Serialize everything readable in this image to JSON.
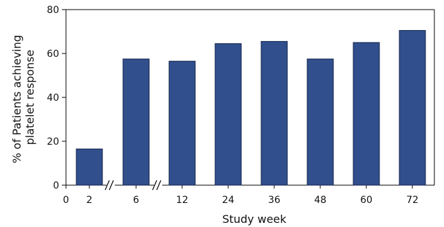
{
  "chart_data": {
    "type": "bar",
    "title": "",
    "xlabel": "Study week",
    "ylabel": [
      "% of Patients achieving",
      "platelet response"
    ],
    "x_tick_labels": [
      "0",
      "2",
      "6",
      "12",
      "24",
      "36",
      "48",
      "60",
      "72"
    ],
    "categories": [
      "2",
      "6",
      "12",
      "24",
      "36",
      "48",
      "60",
      "72"
    ],
    "values": [
      16.5,
      57.5,
      56.5,
      64.5,
      65.5,
      57.5,
      65,
      70.5
    ],
    "ylim": [
      0,
      80
    ],
    "yticks": [
      0,
      20,
      40,
      60,
      80
    ],
    "axis_breaks": [
      "between 2 and 6",
      "between 6 and 12"
    ],
    "bar_color": "#314f8c",
    "grid": false,
    "legend": "none"
  }
}
